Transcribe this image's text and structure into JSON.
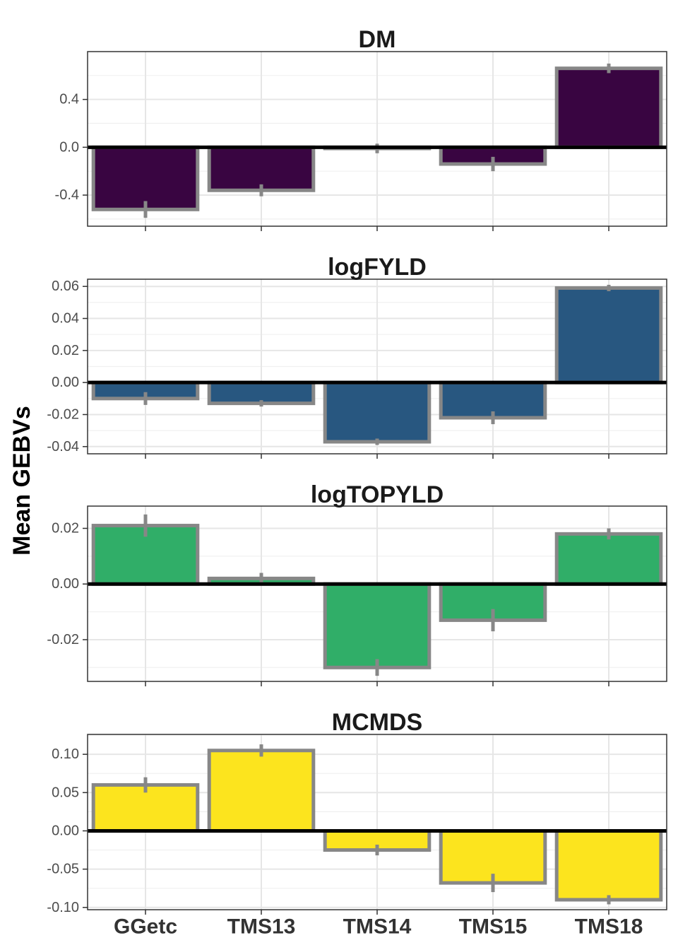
{
  "chart_data": {
    "type": "bar",
    "ylabel": "Mean GEBVs",
    "categories": [
      "GGetc",
      "TMS13",
      "TMS14",
      "TMS15",
      "TMS18"
    ],
    "bar_outline_color": "#878787",
    "zero_line_color": "#000000",
    "panels": [
      {
        "title": "DM",
        "color": "#390541",
        "values": [
          -0.52,
          -0.36,
          -0.01,
          -0.14,
          0.66
        ],
        "errors": [
          0.07,
          0.05,
          0.04,
          0.06,
          0.04
        ],
        "ylim": [
          -0.66,
          0.8
        ],
        "yticks": [
          -0.4,
          0.0,
          0.4
        ],
        "ytick_labels": [
          "-0.4",
          "0.0",
          "0.4"
        ]
      },
      {
        "title": "logFYLD",
        "color": "#285780",
        "values": [
          -0.01,
          -0.013,
          -0.037,
          -0.022,
          0.059
        ],
        "errors": [
          0.004,
          0.002,
          0.002,
          0.004,
          0.002
        ],
        "ylim": [
          -0.0445,
          0.0645
        ],
        "yticks": [
          -0.04,
          -0.02,
          0.0,
          0.02,
          0.04,
          0.06
        ],
        "ytick_labels": [
          "-0.04",
          "-0.02",
          "0.00",
          "0.02",
          "0.04",
          "0.06"
        ]
      },
      {
        "title": "logTOPYLD",
        "color": "#30ae68",
        "values": [
          0.021,
          0.002,
          -0.03,
          -0.013,
          0.018
        ],
        "errors": [
          0.004,
          0.002,
          0.003,
          0.004,
          0.002
        ],
        "ylim": [
          -0.035,
          0.028
        ],
        "yticks": [
          -0.02,
          0.0,
          0.02
        ],
        "ytick_labels": [
          "-0.02",
          "0.00",
          "0.02"
        ]
      },
      {
        "title": "MCMDS",
        "color": "#fce41e",
        "values": [
          0.06,
          0.105,
          -0.025,
          -0.068,
          -0.09
        ],
        "errors": [
          0.01,
          0.008,
          0.007,
          0.012,
          0.006
        ],
        "ylim": [
          -0.103,
          0.126
        ],
        "yticks": [
          -0.1,
          -0.05,
          0.0,
          0.05,
          0.1
        ],
        "ytick_labels": [
          "-0.10",
          "-0.05",
          "0.00",
          "0.05",
          "0.10"
        ]
      }
    ]
  }
}
